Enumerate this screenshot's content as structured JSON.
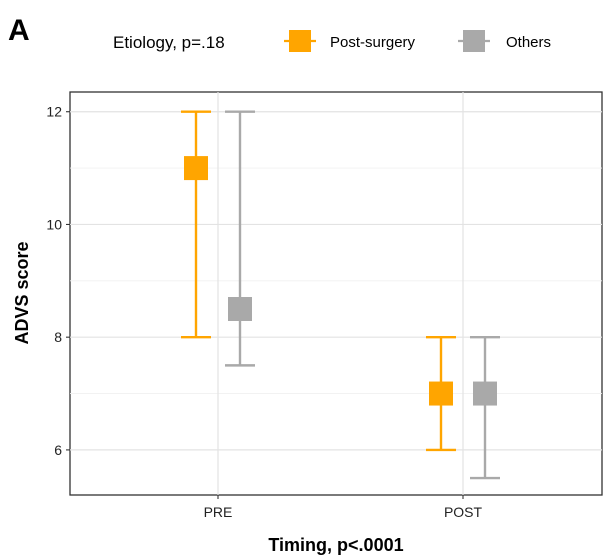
{
  "panel_label": "A",
  "chart_data": {
    "type": "errorbar",
    "title": "",
    "xlabel": "Timing, p<.0001",
    "ylabel": "ADVS score",
    "categories": [
      "PRE",
      "POST"
    ],
    "ylim": [
      5.2,
      12.35
    ],
    "yticks": [
      6,
      8,
      10,
      12
    ],
    "grid": true,
    "legend": {
      "title": "Etiology, p=.18",
      "placement": "top"
    },
    "series": [
      {
        "name": "Post-surgery",
        "color": "#FFA500",
        "points": [
          {
            "x": "PRE",
            "y": 11,
            "lower": 8,
            "upper": 12
          },
          {
            "x": "POST",
            "y": 7,
            "lower": 6,
            "upper": 8
          }
        ]
      },
      {
        "name": "Others",
        "color": "#A9A9A9",
        "points": [
          {
            "x": "PRE",
            "y": 8.5,
            "lower": 7.5,
            "upper": 12
          },
          {
            "x": "POST",
            "y": 7,
            "lower": 5.5,
            "upper": 8
          }
        ]
      }
    ]
  }
}
